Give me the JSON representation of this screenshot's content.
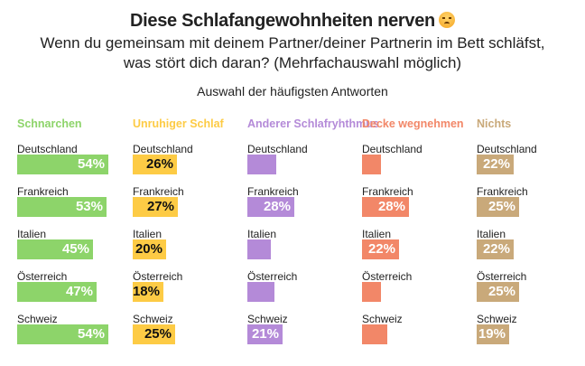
{
  "header": {
    "title": "Diese Schlafangewohnheiten nerven",
    "title_emoji": "angry-face",
    "subtitle": "Wenn du gemeinsam mit deinem Partner/deiner Partnerin im Bett schläfst, was stört dich daran? (Mehrfachauswahl möglich)",
    "note": "Auswahl der häufigsten Antworten"
  },
  "chart_data": {
    "type": "bar",
    "orientation": "horizontal",
    "title": "Diese Schlafangewohnheiten nerven",
    "subtitle": "Wenn du gemeinsam mit deinem Partner/deiner Partnerin im Bett schläfst, was stört dich daran? (Mehrfachauswahl möglich)",
    "note": "Auswahl der häufigsten Antworten",
    "unit": "%",
    "categories": [
      "Deutschland",
      "Frankreich",
      "Italien",
      "Österreich",
      "Schweiz"
    ],
    "series": [
      {
        "name": "Schnarchen",
        "color": "#8dd46a",
        "label_color": "#ffffff",
        "values": [
          54,
          53,
          45,
          47,
          54
        ],
        "labels": [
          "54%",
          "53%",
          "45%",
          "47%",
          "54%"
        ]
      },
      {
        "name": "Unruhiger Schlaf",
        "color": "#fdcb45",
        "label_color": "#111111",
        "values": [
          26,
          27,
          20,
          18,
          25
        ],
        "labels": [
          "26%",
          "27%",
          "20%",
          "18%",
          "25%"
        ]
      },
      {
        "name": "Anderer Schlafryhthmus",
        "color": "#b48ad8",
        "label_color": "#ffffff",
        "values": [
          17,
          28,
          14,
          16,
          21
        ],
        "labels": [
          "",
          "28%",
          "",
          "",
          "21%"
        ]
      },
      {
        "name": "Decke wegnehmen",
        "color": "#f28768",
        "label_color": "#ffffff",
        "values": [
          11,
          28,
          22,
          11,
          15
        ],
        "labels": [
          "",
          "28%",
          "22%",
          "",
          ""
        ]
      },
      {
        "name": "Nichts",
        "color": "#c9a97a",
        "label_color": "#ffffff",
        "values": [
          22,
          25,
          22,
          25,
          19
        ],
        "labels": [
          "22%",
          "25%",
          "22%",
          "25%",
          "19%"
        ]
      }
    ],
    "xlim": [
      0,
      100
    ]
  }
}
